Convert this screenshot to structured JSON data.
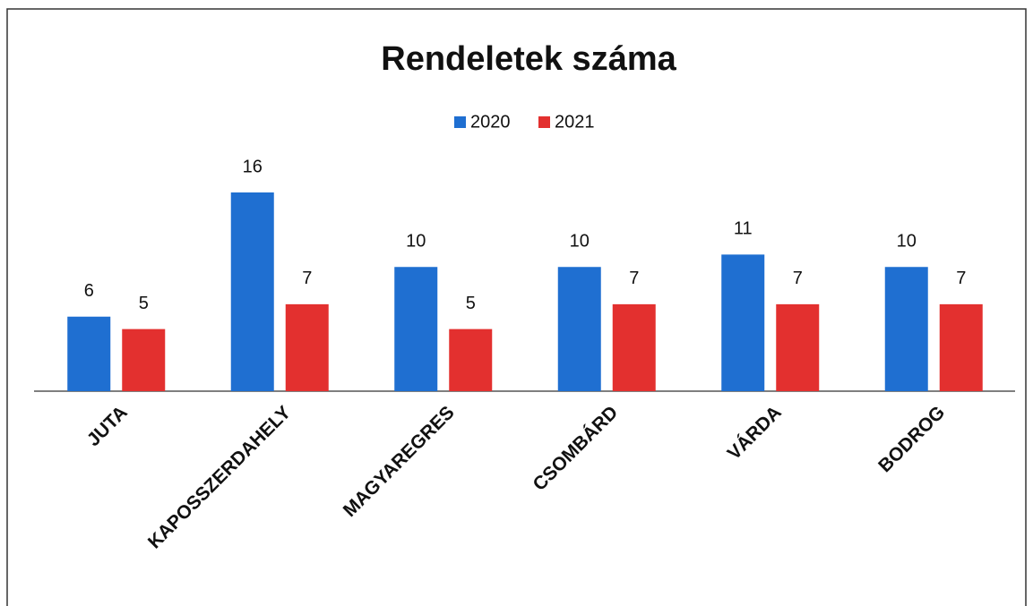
{
  "chart_data": {
    "type": "bar",
    "title": "Rendeletek száma",
    "categories": [
      "JUTA",
      "KAPOSSZERDAHELY",
      "MAGYAREGRES",
      "CSOMBÁRD",
      "VÁRDA",
      "BODROG"
    ],
    "series": [
      {
        "name": "2020",
        "color": "#1f6fd1",
        "values": [
          6,
          16,
          10,
          10,
          11,
          10
        ]
      },
      {
        "name": "2021",
        "color": "#e3302f",
        "values": [
          5,
          7,
          5,
          7,
          7,
          7
        ]
      }
    ],
    "legend": "top"
  }
}
